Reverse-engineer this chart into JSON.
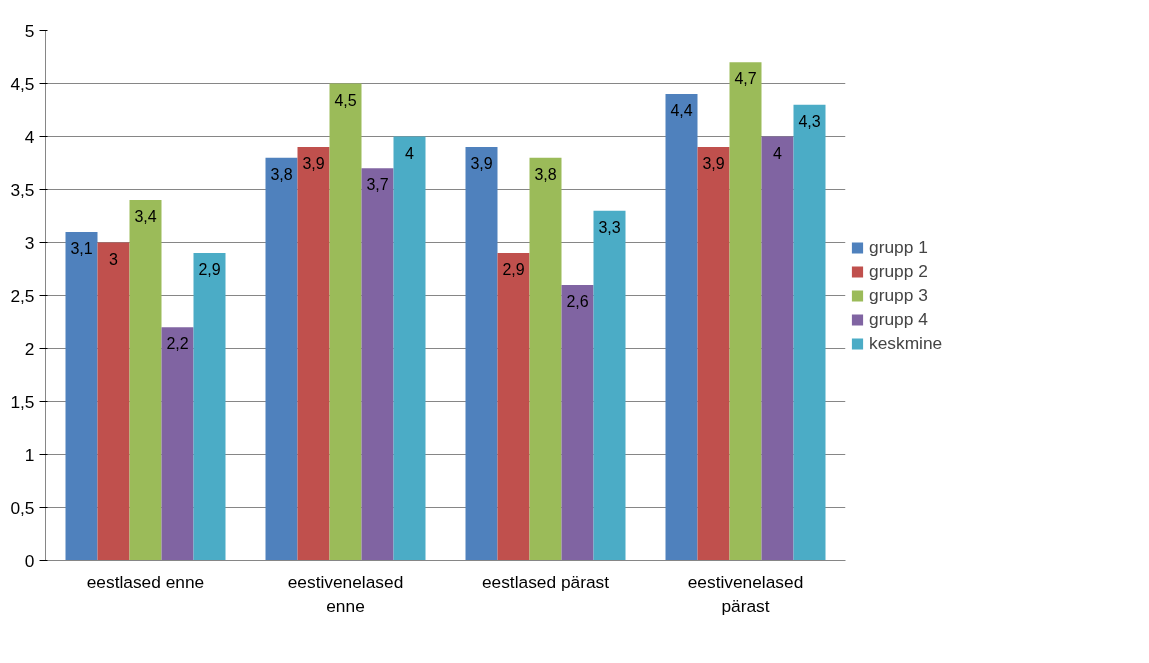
{
  "chart_data": {
    "type": "bar",
    "categories": [
      "eestlased enne",
      "eestivenelased enne",
      "eestlased pärast",
      "eestivenelased pärast"
    ],
    "series": [
      {
        "name": "grupp 1",
        "color": "#4f81bd",
        "values": [
          3.1,
          3.8,
          3.9,
          4.4
        ],
        "value_labels": [
          "3,1",
          "3,8",
          "3,9",
          "4,4"
        ]
      },
      {
        "name": "grupp 2",
        "color": "#c0504d",
        "values": [
          3,
          3.9,
          2.9,
          3.9
        ],
        "value_labels": [
          "3",
          "3,9",
          "2,9",
          "3,9"
        ]
      },
      {
        "name": "grupp 3",
        "color": "#9bbb59",
        "values": [
          3.4,
          4.5,
          3.8,
          4.7
        ],
        "value_labels": [
          "3,4",
          "4,5",
          "3,8",
          "4,7"
        ]
      },
      {
        "name": "grupp 4",
        "color": "#8064a2",
        "values": [
          2.2,
          3.7,
          2.6,
          4
        ],
        "value_labels": [
          "2,2",
          "3,7",
          "2,6",
          "4"
        ]
      },
      {
        "name": "keskmine",
        "color": "#4bacc6",
        "values": [
          2.9,
          4,
          3.3,
          4.3
        ],
        "value_labels": [
          "2,9",
          "4",
          "3,3",
          "4,3"
        ]
      }
    ],
    "ylim": [
      0,
      5
    ],
    "yticks": [
      0,
      {
        "value": 0.5,
        "label": "0,5"
      },
      1,
      {
        "value": 1.5,
        "label": "1,5"
      },
      2,
      {
        "value": 2.5,
        "label": "2,5"
      },
      3,
      {
        "value": 3.5,
        "label": "3,5"
      },
      4,
      {
        "value": 4.5,
        "label": "4,5"
      },
      5
    ],
    "grid": "y",
    "legend": "right"
  }
}
